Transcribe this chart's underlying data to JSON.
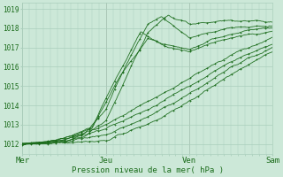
{
  "title": "",
  "xlabel": "Pression niveau de la mer( hPa )",
  "bg_color": "#cce8d8",
  "grid_color": "#aacfbc",
  "line_color": "#1a6b1a",
  "ylim": [
    1011.5,
    1019.3
  ],
  "xlim": [
    0,
    72
  ],
  "yticks": [
    1012,
    1013,
    1014,
    1015,
    1016,
    1017,
    1018,
    1019
  ],
  "day_ticks": [
    0,
    24,
    48,
    72
  ],
  "day_labels": [
    "Mer",
    "Jeu",
    "Ven",
    "Sam"
  ],
  "series": [
    {
      "knots_x": [
        0,
        6,
        12,
        20,
        28,
        36,
        42,
        48,
        54,
        60,
        66,
        72
      ],
      "knots_y": [
        1012.0,
        1012.1,
        1012.3,
        1012.8,
        1015.5,
        1017.5,
        1017.0,
        1016.8,
        1017.2,
        1017.5,
        1017.7,
        1017.8
      ]
    },
    {
      "knots_x": [
        0,
        6,
        12,
        20,
        28,
        34,
        40,
        48,
        54,
        60,
        66,
        72
      ],
      "knots_y": [
        1012.0,
        1012.1,
        1012.3,
        1012.9,
        1015.8,
        1017.8,
        1017.2,
        1016.9,
        1017.4,
        1017.7,
        1017.9,
        1018.0
      ]
    },
    {
      "knots_x": [
        0,
        6,
        12,
        18,
        24,
        30,
        36,
        40,
        48,
        54,
        60,
        66,
        72
      ],
      "knots_y": [
        1012.0,
        1012.1,
        1012.2,
        1012.6,
        1013.8,
        1016.2,
        1018.2,
        1018.6,
        1017.5,
        1017.8,
        1018.0,
        1018.1,
        1018.1
      ]
    },
    {
      "knots_x": [
        0,
        6,
        12,
        18,
        24,
        30,
        36,
        42,
        48,
        54,
        60,
        66,
        72
      ],
      "knots_y": [
        1012.0,
        1012.05,
        1012.1,
        1012.4,
        1013.2,
        1015.5,
        1017.8,
        1018.7,
        1018.2,
        1018.3,
        1018.4,
        1018.4,
        1018.3
      ]
    },
    {
      "knots_x": [
        0,
        12,
        24,
        36,
        48,
        60,
        72
      ],
      "knots_y": [
        1012.0,
        1012.2,
        1013.0,
        1014.2,
        1015.4,
        1016.6,
        1017.5
      ]
    },
    {
      "knots_x": [
        0,
        12,
        24,
        36,
        48,
        60,
        72
      ],
      "knots_y": [
        1012.0,
        1012.15,
        1012.8,
        1013.8,
        1015.0,
        1016.3,
        1017.2
      ]
    },
    {
      "knots_x": [
        0,
        12,
        24,
        36,
        48,
        60,
        72
      ],
      "knots_y": [
        1012.0,
        1012.1,
        1012.5,
        1013.4,
        1014.6,
        1016.0,
        1017.0
      ]
    },
    {
      "knots_x": [
        0,
        12,
        24,
        36,
        48,
        60,
        72
      ],
      "knots_y": [
        1012.0,
        1012.05,
        1012.2,
        1013.0,
        1014.2,
        1015.6,
        1016.8
      ]
    }
  ]
}
